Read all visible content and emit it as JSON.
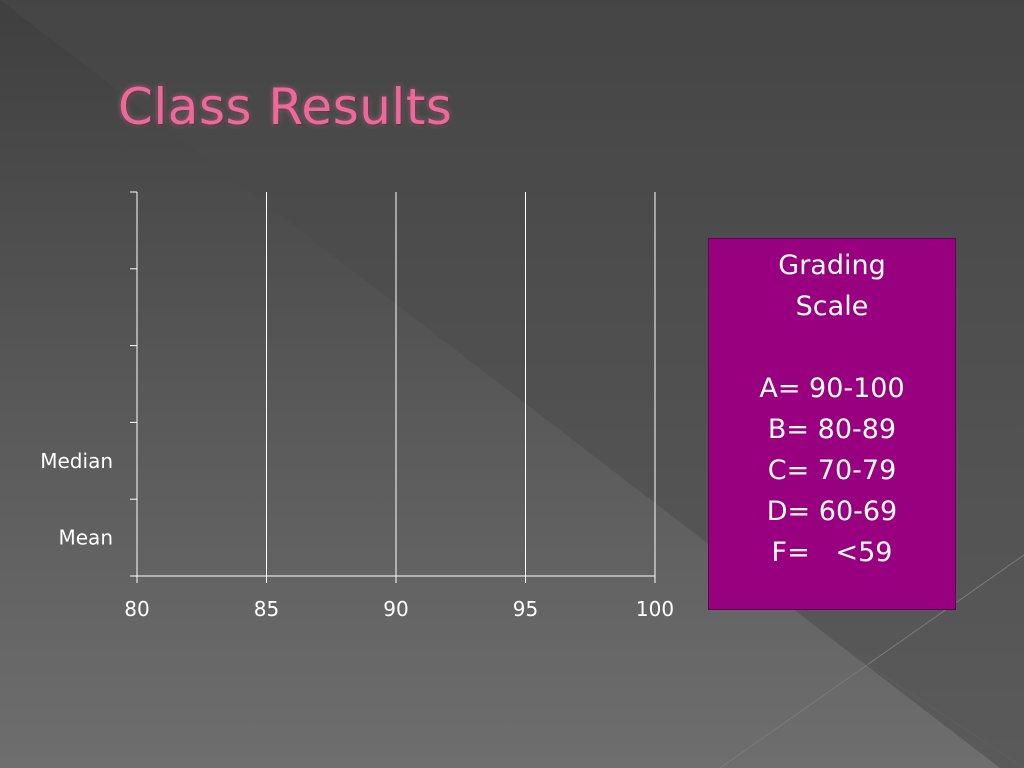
{
  "slide": {
    "title": "Class Results"
  },
  "grading_scale": {
    "heading_line1": "Grading",
    "heading_line2": "Scale",
    "grades": [
      "A= 90-100",
      "B= 80-89",
      "C= 70-79",
      "D= 60-69",
      "F=   <59"
    ]
  },
  "colors": {
    "title": "#f0689a",
    "box_fill": "#990080",
    "gridline": "#ffffff"
  },
  "chart_data": {
    "type": "bar",
    "orientation": "horizontal",
    "categories": [
      "Mean",
      "Median",
      "",
      "",
      ""
    ],
    "values": [
      null,
      null,
      null,
      null,
      null
    ],
    "xticks": [
      80,
      85,
      90,
      95,
      100
    ],
    "xlim": [
      80,
      100
    ],
    "grid": true,
    "legend": "none",
    "title": "",
    "xlabel": "",
    "ylabel": ""
  }
}
